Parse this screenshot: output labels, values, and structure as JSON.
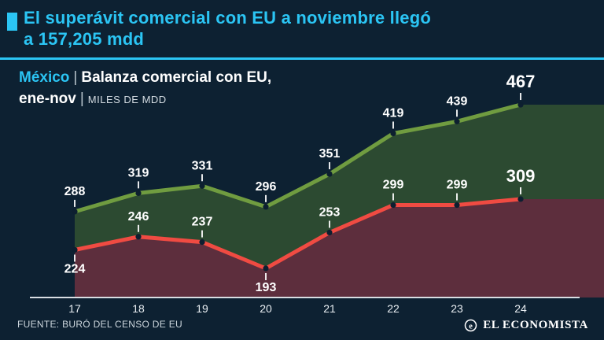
{
  "header": {
    "title_line1": "El superávit comercial con EU a noviembre llegó",
    "title_line2": "a 157,205 mdd"
  },
  "subtitle": {
    "country": "México",
    "separator": "|",
    "description": "Balanza comercial con EU,",
    "period": "ene-nov",
    "units": "MILES DE MDD"
  },
  "chart_data": {
    "type": "area",
    "x": [
      "17",
      "18",
      "19",
      "20",
      "21",
      "22",
      "23",
      "24"
    ],
    "series": [
      {
        "name": "green-series",
        "color": "#709c40",
        "fill": "#2c4a31",
        "values": [
          288,
          319,
          331,
          296,
          351,
          419,
          439,
          467
        ],
        "labels_below": []
      },
      {
        "name": "red-series",
        "color": "#f04b42",
        "fill": "#5d2e3d",
        "values": [
          224,
          246,
          237,
          193,
          253,
          299,
          299,
          309
        ],
        "labels_below": [
          0,
          3
        ]
      }
    ],
    "ylim": [
      150,
      500
    ],
    "grid": false,
    "legend": "none",
    "emphasize_last_label": true
  },
  "footer": {
    "source": "FUENTE: BURÓ DEL CENSO DE EU",
    "brand": "EL ECONOMISTA",
    "brand_icon_letter": "e"
  },
  "colors": {
    "background": "#0d2132",
    "accent": "#2bc5f4",
    "axis": "#d8dee3",
    "label": "#ffffff",
    "dot": "#0d1f30"
  }
}
